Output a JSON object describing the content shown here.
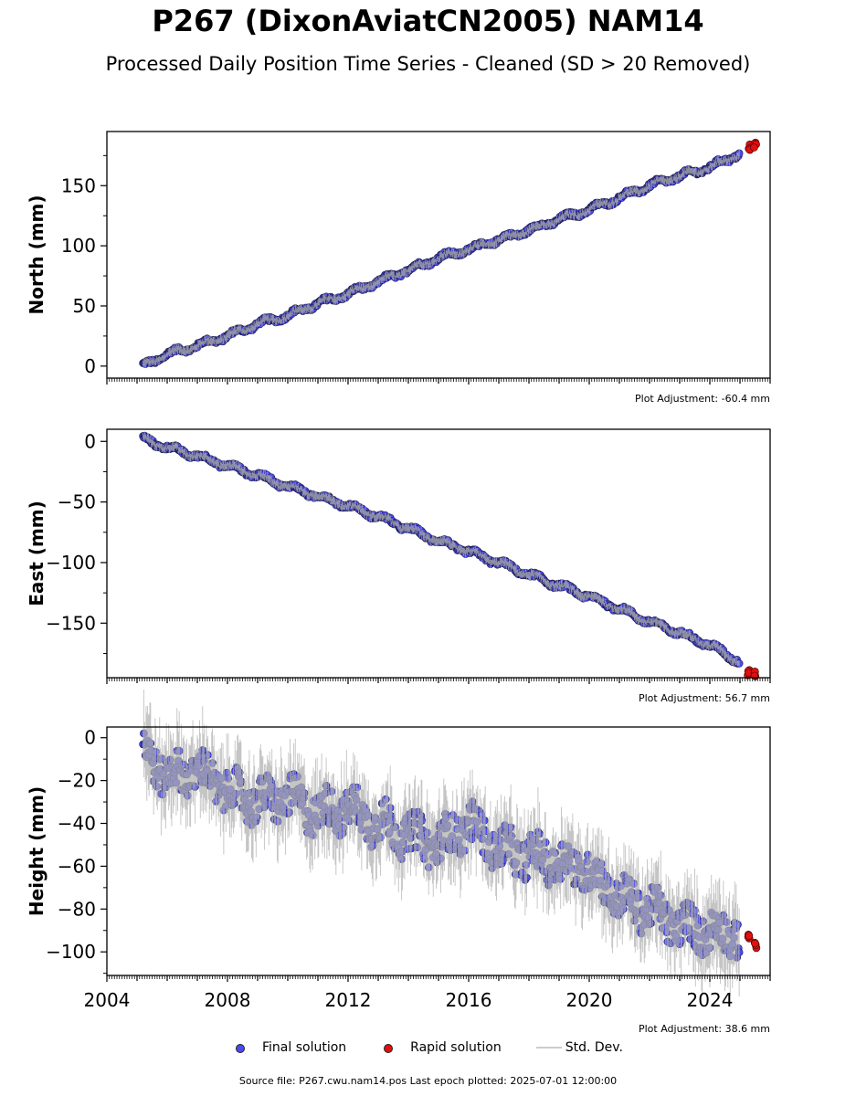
{
  "title": "P267 (DixonAviatCN2005) NAM14",
  "subtitle": "Processed Daily Position Time Series - Cleaned (SD > 20 Removed)",
  "legend": {
    "final": "Final solution",
    "rapid": "Rapid solution",
    "std": "Std. Dev."
  },
  "footer": "Source file: P267.cwu.nam14.pos  Last epoch plotted: 2025-07-01 12:00:00",
  "colors": {
    "final": "#4a4af0",
    "rapid": "#e01010",
    "std": "#b0b0b0"
  },
  "chart_data": [
    {
      "type": "scatter",
      "ylabel": "North (mm)",
      "xlim": [
        2004,
        2026
      ],
      "ylim": [
        -10,
        195
      ],
      "yticks": [
        0,
        50,
        100,
        150
      ],
      "adjustment": "Plot Adjustment: -60.4 mm",
      "series": [
        {
          "name": "Final solution",
          "x": [
            2005.2,
            2006.0,
            2007.0,
            2008.0,
            2009.0,
            2010.0,
            2011.0,
            2012.0,
            2013.0,
            2014.0,
            2015.0,
            2016.0,
            2017.0,
            2018.0,
            2019.0,
            2020.0,
            2021.0,
            2022.0,
            2023.0,
            2024.0,
            2025.0
          ],
          "y": [
            0,
            10,
            17,
            25,
            35,
            42,
            52,
            60,
            70,
            80,
            90,
            97,
            105,
            113,
            122,
            130,
            140,
            150,
            158,
            165,
            177
          ]
        },
        {
          "name": "Rapid solution",
          "x": [
            2025.3,
            2025.5
          ],
          "y": [
            182,
            184
          ]
        }
      ]
    },
    {
      "type": "scatter",
      "ylabel": "East (mm)",
      "xlim": [
        2004,
        2026
      ],
      "ylim": [
        -195,
        10
      ],
      "yticks": [
        0,
        -50,
        -100,
        -150
      ],
      "adjustment": "Plot Adjustment: 56.7 mm",
      "series": [
        {
          "name": "Final solution",
          "x": [
            2005.2,
            2006.0,
            2007.0,
            2008.0,
            2009.0,
            2010.0,
            2011.0,
            2012.0,
            2013.0,
            2014.0,
            2015.0,
            2016.0,
            2017.0,
            2018.0,
            2019.0,
            2020.0,
            2021.0,
            2022.0,
            2023.0,
            2024.0,
            2025.0
          ],
          "y": [
            2,
            -5,
            -12,
            -20,
            -28,
            -37,
            -45,
            -53,
            -62,
            -72,
            -82,
            -91,
            -100,
            -110,
            -119,
            -128,
            -138,
            -149,
            -158,
            -168,
            -182
          ]
        },
        {
          "name": "Rapid solution",
          "x": [
            2025.3,
            2025.5
          ],
          "y": [
            -191,
            -192
          ]
        }
      ]
    },
    {
      "type": "scatter",
      "ylabel": "Height (mm)",
      "xlim": [
        2004,
        2026
      ],
      "ylim": [
        -111,
        5
      ],
      "yticks": [
        0,
        -20,
        -40,
        -60,
        -80,
        -100
      ],
      "xticks": [
        2004,
        2008,
        2012,
        2016,
        2020,
        2024
      ],
      "adjustment": "Plot Adjustment: 38.6 mm",
      "series": [
        {
          "name": "Final solution",
          "x": [
            2005.2,
            2006.0,
            2007.0,
            2008.0,
            2009.0,
            2010.0,
            2011.0,
            2012.0,
            2013.0,
            2014.0,
            2015.0,
            2016.0,
            2017.0,
            2018.0,
            2019.0,
            2020.0,
            2021.0,
            2022.0,
            2023.0,
            2024.0,
            2025.0
          ],
          "y": [
            -5,
            -18,
            -15,
            -25,
            -30,
            -28,
            -35,
            -33,
            -40,
            -45,
            -50,
            -40,
            -52,
            -55,
            -58,
            -62,
            -75,
            -80,
            -88,
            -90,
            -92
          ]
        },
        {
          "name": "Rapid solution",
          "x": [
            2025.3,
            2025.5
          ],
          "y": [
            -93,
            -97
          ]
        }
      ]
    }
  ]
}
